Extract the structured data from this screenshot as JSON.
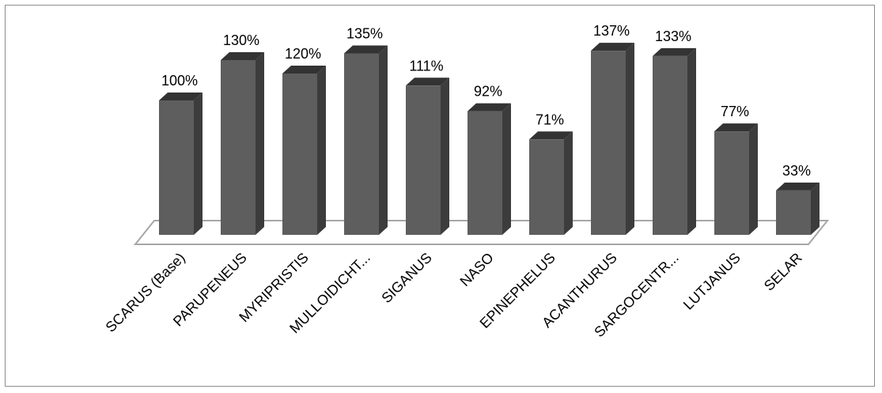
{
  "chart_data": {
    "type": "bar",
    "style": "3d-column",
    "categories": [
      "SCARUS (Base)",
      "PARUPENEUS",
      "MYRIPRISTIS",
      "MULLOIDICHT...",
      "SIGANUS",
      "NASO",
      "EPINEPHELUS",
      "ACANTHURUS",
      "SARGOCENTR...",
      "LUTJANUS",
      "SELAR"
    ],
    "values": [
      100,
      130,
      120,
      135,
      111,
      92,
      71,
      137,
      133,
      77,
      33
    ],
    "value_labels": [
      "100%",
      "130%",
      "120%",
      "135%",
      "111%",
      "92%",
      "71%",
      "137%",
      "133%",
      "77%",
      "33%"
    ],
    "unit": "%",
    "title": "",
    "xlabel": "",
    "ylabel": "",
    "ylim": [
      0,
      150
    ],
    "grid": false,
    "legend": "none",
    "colors": {
      "bar_front": "#5e5e5e",
      "bar_side": "#3c3c3c",
      "bar_top": "#333333",
      "floor_fill": "#ffffff",
      "floor_stroke": "#a6a6a6"
    }
  }
}
